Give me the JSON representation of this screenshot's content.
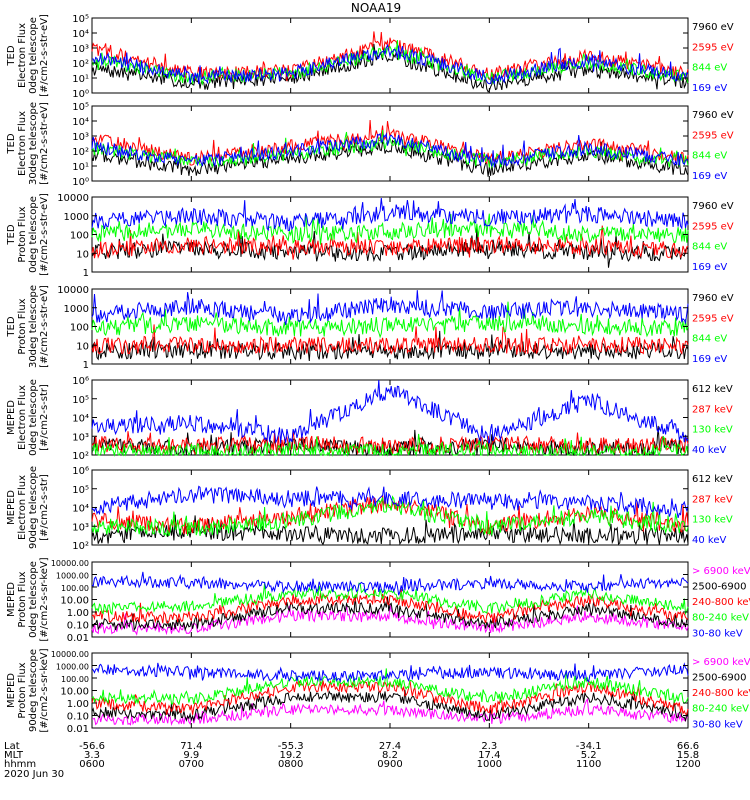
{
  "title": "NOAA19",
  "colors": {
    "black": "#000000",
    "red": "#ff0000",
    "green": "#00ff00",
    "blue": "#0000ff",
    "magenta": "#ff00ff"
  },
  "x_axis": {
    "row_labels": [
      "Lat",
      "MLT",
      "hhmm"
    ],
    "date": "2020 Jun 30",
    "ticks": [
      {
        "lat": "-56.6",
        "mlt": "3.3",
        "hhmm": "0600"
      },
      {
        "lat": "71.4",
        "mlt": "9.9",
        "hhmm": "0700"
      },
      {
        "lat": "-55.3",
        "mlt": "19.2",
        "hhmm": "0800"
      },
      {
        "lat": "27.4",
        "mlt": "8.2",
        "hhmm": "0900"
      },
      {
        "lat": "2.3",
        "mlt": "17.4",
        "hhmm": "1000"
      },
      {
        "lat": "-34.1",
        "mlt": "5.2",
        "hhmm": "1100"
      },
      {
        "lat": "66.6",
        "mlt": "15.8",
        "hhmm": "1200"
      }
    ]
  },
  "chart_data": [
    {
      "type": "line",
      "ylabel": [
        "TED",
        "Electron Flux",
        "0deg telescope",
        "[#/cm2-s-str-eV]"
      ],
      "yscale": "log",
      "ylim": [
        1,
        100000
      ],
      "yticks": [
        "10⁰",
        "10¹",
        "10²",
        "10³",
        "10⁴",
        "10⁵"
      ],
      "x": [
        "0600",
        "0700",
        "0800",
        "0900",
        "1000",
        "1100",
        "1200"
      ],
      "series": [
        {
          "name": "7960 eV",
          "color": "#000000",
          "values": [
            40,
            5,
            10,
            300,
            3,
            40,
            5
          ]
        },
        {
          "name": "2595 eV",
          "color": "#ff0000",
          "values": [
            1000,
            20,
            30,
            2000,
            20,
            300,
            20
          ]
        },
        {
          "name": "844 eV",
          "color": "#00ff00",
          "values": [
            200,
            10,
            20,
            600,
            10,
            100,
            10
          ]
        },
        {
          "name": "169 eV",
          "color": "#0000ff",
          "values": [
            300,
            10,
            20,
            800,
            10,
            150,
            10
          ]
        }
      ]
    },
    {
      "type": "line",
      "ylabel": [
        "TED",
        "Electron Flux",
        "30deg telescope",
        "[#/cm2-s-str-eV]"
      ],
      "yscale": "log",
      "ylim": [
        1,
        100000
      ],
      "yticks": [
        "10⁰",
        "10¹",
        "10²",
        "10³",
        "10⁴",
        "10⁵"
      ],
      "x": [
        "0600",
        "0700",
        "0800",
        "0900",
        "1000",
        "1100",
        "1200"
      ],
      "series": [
        {
          "name": "7960 eV",
          "color": "#000000",
          "values": [
            60,
            5,
            30,
            200,
            5,
            60,
            5
          ]
        },
        {
          "name": "2595 eV",
          "color": "#ff0000",
          "values": [
            800,
            30,
            200,
            1500,
            30,
            300,
            30
          ]
        },
        {
          "name": "844 eV",
          "color": "#00ff00",
          "values": [
            150,
            20,
            60,
            400,
            20,
            100,
            20
          ]
        },
        {
          "name": "169 eV",
          "color": "#0000ff",
          "values": [
            200,
            20,
            100,
            600,
            20,
            150,
            20
          ]
        }
      ]
    },
    {
      "type": "line",
      "ylabel": [
        "TED",
        "Proton Flux",
        "0deg telescope",
        "[#/cm2-s-str-eV]"
      ],
      "yscale": "log",
      "ylim": [
        1,
        10000
      ],
      "yticks": [
        "1",
        "10",
        "100",
        "1000",
        "10000"
      ],
      "x": [
        "0600",
        "0700",
        "0800",
        "0900",
        "1000",
        "1100",
        "1200"
      ],
      "series": [
        {
          "name": "7960 eV",
          "color": "#000000",
          "values": [
            10,
            20,
            10,
            10,
            20,
            10,
            10
          ]
        },
        {
          "name": "2595 eV",
          "color": "#ff0000",
          "values": [
            15,
            30,
            20,
            20,
            30,
            20,
            15
          ]
        },
        {
          "name": "844 eV",
          "color": "#00ff00",
          "values": [
            100,
            200,
            100,
            150,
            200,
            100,
            100
          ]
        },
        {
          "name": "169 eV",
          "color": "#0000ff",
          "values": [
            500,
            1000,
            400,
            1500,
            800,
            1200,
            500
          ]
        }
      ]
    },
    {
      "type": "line",
      "ylabel": [
        "TED",
        "Proton Flux",
        "30deg telescope",
        "[#/cm2-s-str-eV]"
      ],
      "yscale": "log",
      "ylim": [
        1,
        10000
      ],
      "yticks": [
        "1",
        "10",
        "100",
        "1000",
        "10000"
      ],
      "x": [
        "0600",
        "0700",
        "0800",
        "0900",
        "1000",
        "1100",
        "1200"
      ],
      "series": [
        {
          "name": "7960 eV",
          "color": "#000000",
          "values": [
            5,
            5,
            5,
            5,
            5,
            5,
            5
          ]
        },
        {
          "name": "2595 eV",
          "color": "#ff0000",
          "values": [
            10,
            10,
            10,
            10,
            10,
            10,
            10
          ]
        },
        {
          "name": "844 eV",
          "color": "#00ff00",
          "values": [
            80,
            150,
            80,
            120,
            150,
            100,
            80
          ]
        },
        {
          "name": "169 eV",
          "color": "#0000ff",
          "values": [
            400,
            1200,
            300,
            1500,
            600,
            1000,
            400
          ]
        }
      ]
    },
    {
      "type": "line",
      "ylabel": [
        "MEPED",
        "Electron Flux",
        "0deg telescope",
        "[#/cm2-s-str]"
      ],
      "yscale": "log",
      "ylim": [
        100,
        1000000
      ],
      "yticks": [
        "10²",
        "10³",
        "10⁴",
        "10⁵",
        "10⁶"
      ],
      "x": [
        "0600",
        "0700",
        "0800",
        "0900",
        "1000",
        "1100",
        "1200"
      ],
      "series": [
        {
          "name": "612 keV",
          "color": "#000000",
          "values": [
            300,
            200,
            300,
            200,
            300,
            200,
            300
          ]
        },
        {
          "name": "287 keV",
          "color": "#ff0000",
          "values": [
            400,
            300,
            400,
            300,
            400,
            300,
            400
          ]
        },
        {
          "name": "130 keV",
          "color": "#00ff00",
          "values": [
            150,
            150,
            150,
            150,
            150,
            150,
            150
          ]
        },
        {
          "name": "40 keV",
          "color": "#0000ff",
          "values": [
            3000,
            5000,
            1000,
            300000,
            1000,
            80000,
            1000
          ]
        }
      ]
    },
    {
      "type": "line",
      "ylabel": [
        "MEPED",
        "Electron Flux",
        "90deg telescope",
        "[#/cm2-s-str]"
      ],
      "yscale": "log",
      "ylim": [
        100,
        1000000
      ],
      "yticks": [
        "10²",
        "10³",
        "10⁴",
        "10⁵",
        "10⁶"
      ],
      "x": [
        "0600",
        "0700",
        "0800",
        "0900",
        "1000",
        "1100",
        "1200"
      ],
      "series": [
        {
          "name": "612 keV",
          "color": "#000000",
          "values": [
            300,
            500,
            400,
            300,
            400,
            300,
            300
          ]
        },
        {
          "name": "287 keV",
          "color": "#ff0000",
          "values": [
            2000,
            1000,
            3000,
            20000,
            1000,
            5000,
            1000
          ]
        },
        {
          "name": "130 keV",
          "color": "#00ff00",
          "values": [
            1000,
            800,
            2000,
            15000,
            800,
            4000,
            800
          ]
        },
        {
          "name": "40 keV",
          "color": "#0000ff",
          "values": [
            10000,
            50000,
            30000,
            30000,
            20000,
            20000,
            5000
          ]
        }
      ]
    },
    {
      "type": "line",
      "ylabel": [
        "MEPED",
        "Proton Flux",
        "0deg telescope",
        "[#/cm2-s-sr-keV]"
      ],
      "yscale": "log",
      "ylim": [
        0.01,
        10000
      ],
      "yticks": [
        "0.01",
        "0.10",
        "1.00",
        "10.00",
        "100.00",
        "1000.00",
        "10000.00"
      ],
      "x": [
        "0600",
        "0700",
        "0800",
        "0900",
        "1000",
        "1100",
        "1200"
      ],
      "series": [
        {
          "name": "> 6900 keV",
          "color": "#ff00ff",
          "values": [
            0.05,
            0.05,
            0.5,
            0.5,
            0.05,
            0.5,
            0.05
          ]
        },
        {
          "name": "2500-6900",
          "color": "#000000",
          "values": [
            0.1,
            0.1,
            2,
            2,
            0.1,
            2,
            0.1
          ]
        },
        {
          "name": "240-800 keV",
          "color": "#ff0000",
          "values": [
            0.5,
            0.3,
            10,
            10,
            0.3,
            10,
            0.3
          ]
        },
        {
          "name": "80-240 keV",
          "color": "#00ff00",
          "values": [
            2,
            3,
            30,
            30,
            2,
            30,
            2
          ]
        },
        {
          "name": "30-80 keV",
          "color": "#0000ff",
          "values": [
            300,
            200,
            100,
            100,
            200,
            100,
            300
          ]
        }
      ]
    },
    {
      "type": "line",
      "ylabel": [
        "MEPED",
        "Proton Flux",
        "90deg telescope",
        "[#/cm2-s-sr-keV]"
      ],
      "yscale": "log",
      "ylim": [
        0.01,
        10000
      ],
      "yticks": [
        "0.01",
        "0.10",
        "1.00",
        "10.00",
        "100.00",
        "1000.00",
        "10000.00"
      ],
      "x": [
        "0600",
        "0700",
        "0800",
        "0900",
        "1000",
        "1100",
        "1200"
      ],
      "series": [
        {
          "name": "> 6900 keV",
          "color": "#ff00ff",
          "values": [
            0.05,
            0.05,
            0.3,
            0.3,
            0.05,
            0.3,
            0.05
          ]
        },
        {
          "name": "2500-6900",
          "color": "#000000",
          "values": [
            0.2,
            0.1,
            3,
            3,
            0.1,
            3,
            0.1
          ]
        },
        {
          "name": "240-800 keV",
          "color": "#ff0000",
          "values": [
            1,
            0.3,
            20,
            20,
            0.3,
            20,
            0.3
          ]
        },
        {
          "name": "80-240 keV",
          "color": "#00ff00",
          "values": [
            3,
            2,
            50,
            50,
            2,
            50,
            2
          ]
        },
        {
          "name": "30-80 keV",
          "color": "#0000ff",
          "values": [
            500,
            300,
            150,
            150,
            300,
            150,
            500
          ]
        }
      ]
    }
  ]
}
